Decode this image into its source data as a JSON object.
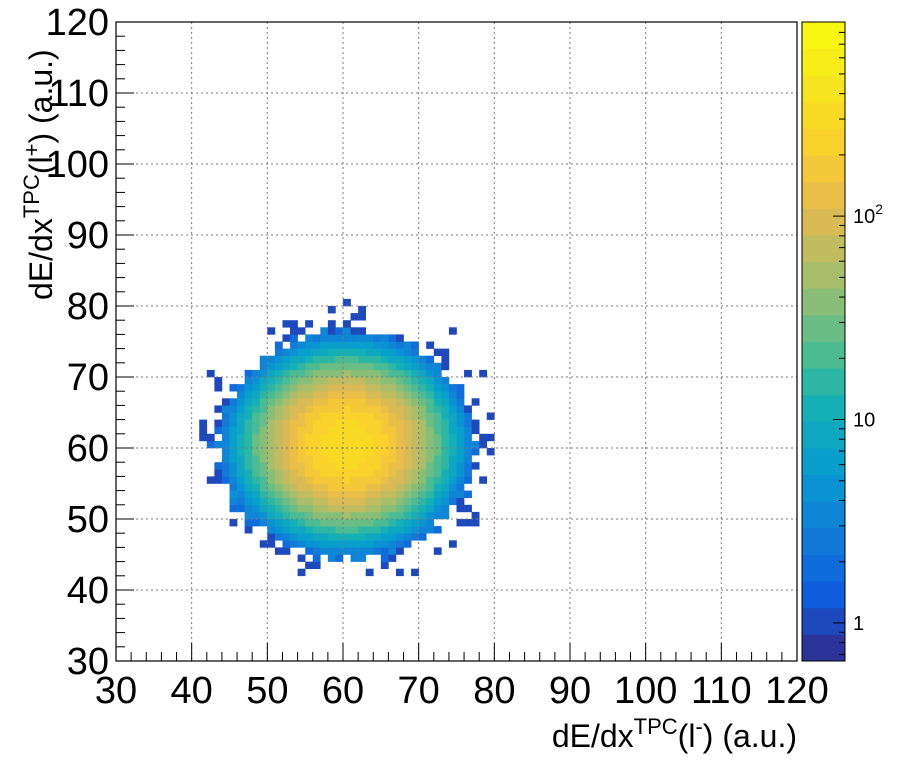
{
  "chart_data": {
    "type": "heatmap",
    "title": "",
    "xlabel": {
      "base": "dE/dx",
      "sup": "TPC",
      "particle": "l",
      "particle_sup": "-",
      "unit": "(a.u.)"
    },
    "ylabel": {
      "base": "dE/dx",
      "sup": "TPC",
      "particle": "l",
      "particle_sup": "+",
      "unit": "(a.u.)"
    },
    "xlim": [
      30,
      120
    ],
    "ylim": [
      30,
      120
    ],
    "x_ticks": [
      "30",
      "40",
      "50",
      "60",
      "70",
      "80",
      "90",
      "100",
      "110",
      "120"
    ],
    "y_ticks": [
      "30",
      "40",
      "50",
      "60",
      "70",
      "80",
      "90",
      "100",
      "110",
      "120"
    ],
    "grid": true,
    "distribution": {
      "shape": "2D gaussian blob",
      "center_x": 60.5,
      "center_y": 60.5,
      "sigma_x": 5.3,
      "sigma_y": 5.0,
      "peak_count": 330,
      "bin_width": 1,
      "x_range": [
        40,
        80
      ],
      "y_range": [
        42,
        82
      ]
    },
    "colorbar": {
      "scale": "log",
      "range": [
        0.65,
        900
      ],
      "ticks": [
        {
          "value": 1,
          "label": "1"
        },
        {
          "value": 10,
          "label": "10"
        },
        {
          "value": 100,
          "label": "10",
          "sup": "2"
        }
      ]
    }
  }
}
